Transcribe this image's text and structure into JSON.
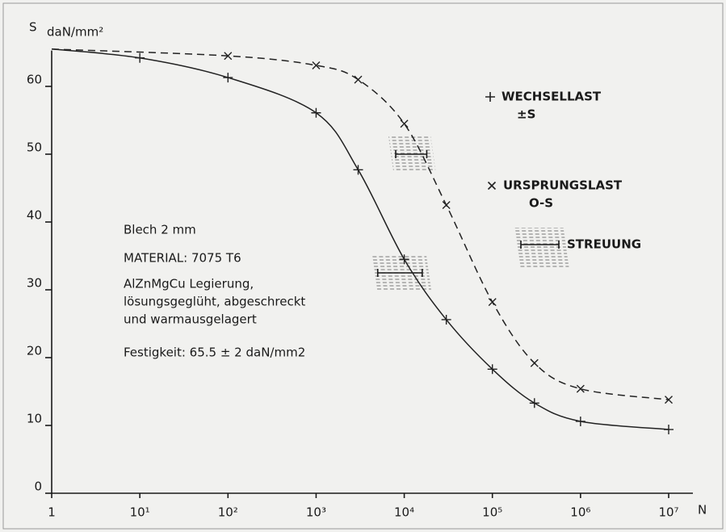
{
  "chart_data": {
    "type": "line",
    "y_label": "S",
    "y_unit": "daN/mm²",
    "x_label": "N",
    "log_x": true,
    "xlim": [
      1,
      10000000
    ],
    "ylim": [
      0,
      66
    ],
    "xticks": [
      1,
      {
        "value": 10,
        "label": "10¹"
      },
      {
        "value": 100,
        "label": "10²"
      },
      {
        "value": 1000,
        "label": "10³"
      },
      {
        "value": 10000,
        "label": "10⁴"
      },
      {
        "value": 100000,
        "label": "10⁵"
      },
      {
        "value": 1000000,
        "label": "10⁶"
      },
      {
        "value": 10000000,
        "label": "10⁷"
      }
    ],
    "yticks": [
      0,
      10,
      20,
      30,
      40,
      50,
      60
    ],
    "ultimate_strength": 65.5,
    "series": [
      {
        "name": "WECHSELLAST",
        "sub": "±S",
        "marker": "+",
        "dashed": false,
        "color": "#222",
        "x": [
          10,
          100,
          1000,
          3000,
          10000,
          30000,
          100000,
          300000,
          1000000,
          10000000
        ],
        "values": [
          64.2,
          61.3,
          56.1,
          47.7,
          34.5,
          25.6,
          18.3,
          13.3,
          10.6,
          9.4
        ]
      },
      {
        "name": "URSPRUNGSLAST",
        "sub": "O-S",
        "marker": "×",
        "dashed": true,
        "color": "#222",
        "x": [
          100,
          1000,
          3000,
          10000,
          30000,
          100000,
          300000,
          1000000,
          10000000
        ],
        "values": [
          64.5,
          63.1,
          61,
          54.5,
          42.5,
          28.2,
          19.2,
          15.4,
          13.8
        ]
      }
    ],
    "scatter_name": "STREUUNG",
    "scatter_bands": [
      {
        "y": 50,
        "x_low": 8000,
        "x_high": 18000
      },
      {
        "y": 32.5,
        "x_low": 5000,
        "x_high": 16000
      }
    ],
    "annotations": [
      "Blech 2 mm",
      "MATERIAL: 7075 T6",
      "AlZnMgCu Legierung,",
      "lösungsgeglüht, abgeschreckt",
      "und warmausgelagert",
      "Festigkeit: 65.5 ± 2 daN/mm2"
    ]
  }
}
